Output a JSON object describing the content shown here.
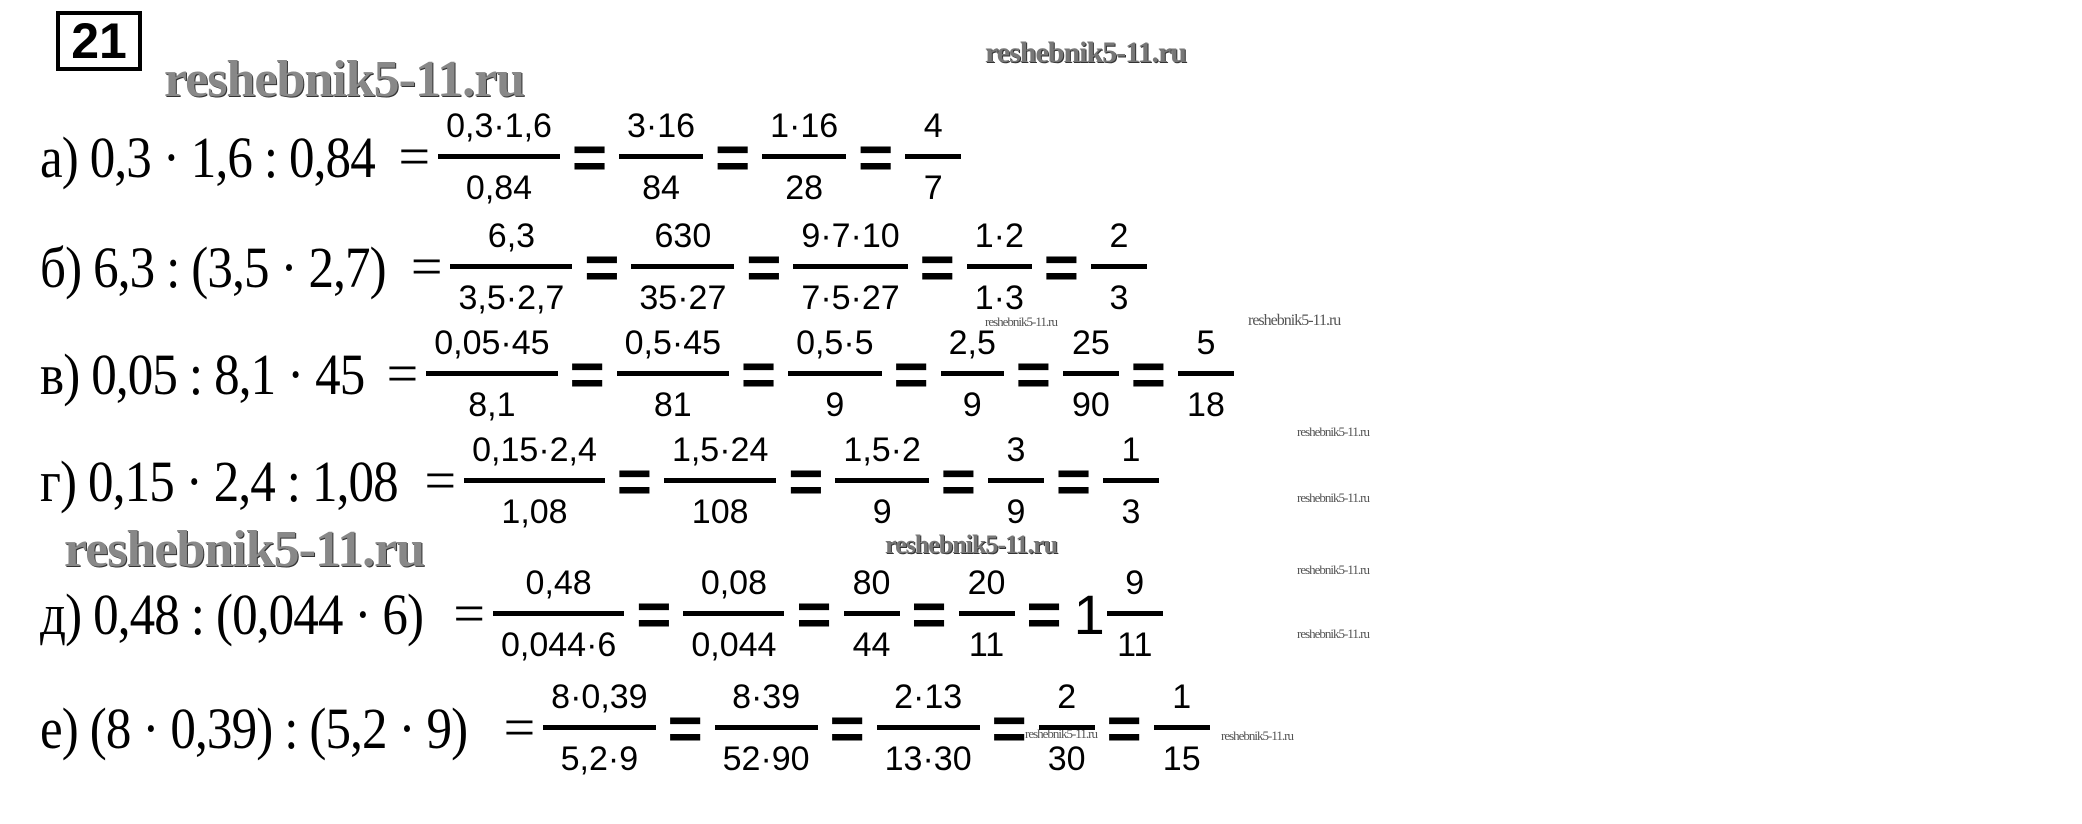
{
  "task_number": "21",
  "watermark": "reshebnik5-11.ru",
  "rows": [
    {
      "label": "а)",
      "expr": "0,3 · 1,6 : 0,84",
      "steps": [
        {
          "num": "0,3·1,6",
          "den": "0,84"
        },
        {
          "num": "3·16",
          "den": "84"
        },
        {
          "num": "1·16",
          "den": "28"
        },
        {
          "num": "4",
          "den": "7"
        }
      ]
    },
    {
      "label": "б)",
      "expr": "6,3 : (3,5 · 2,7)",
      "steps": [
        {
          "num": "6,3",
          "den": "3,5·2,7"
        },
        {
          "num": "630",
          "den": "35·27"
        },
        {
          "num": "9·7·10",
          "den": "7·5·27"
        },
        {
          "num": "1·2",
          "den": "1·3"
        },
        {
          "num": "2",
          "den": "3"
        }
      ]
    },
    {
      "label": "в)",
      "expr": "0,05 : 8,1 · 45",
      "steps": [
        {
          "num": "0,05·45",
          "den": "8,1"
        },
        {
          "num": "0,5·45",
          "den": "81"
        },
        {
          "num": "0,5·5",
          "den": "9"
        },
        {
          "num": "2,5",
          "den": "9"
        },
        {
          "num": "25",
          "den": "90"
        },
        {
          "num": "5",
          "den": "18"
        }
      ]
    },
    {
      "label": "г)",
      "expr": "0,15 · 2,4 : 1,08",
      "steps": [
        {
          "num": "0,15·2,4",
          "den": "1,08"
        },
        {
          "num": "1,5·24",
          "den": "108"
        },
        {
          "num": "1,5·2",
          "den": "9"
        },
        {
          "num": "3",
          "den": "9"
        },
        {
          "num": "1",
          "den": "3"
        }
      ]
    },
    {
      "label": "д)",
      "expr": "0,48 : (0,044 · 6)",
      "steps": [
        {
          "num": "0,48",
          "den": "0,044·6"
        },
        {
          "num": "0,08",
          "den": "0,044"
        },
        {
          "num": "80",
          "den": "44"
        },
        {
          "num": "20",
          "den": "11"
        },
        {
          "whole": "1",
          "num": "9",
          "den": "11"
        }
      ]
    },
    {
      "label": "е)",
      "expr": "(8 · 0,39) : (5,2 · 9)",
      "steps": [
        {
          "num": "8·0,39",
          "den": "5,2·9"
        },
        {
          "num": "8·39",
          "den": "52·90"
        },
        {
          "num": "2·13",
          "den": "13·30"
        },
        {
          "num": "2",
          "den": "30"
        },
        {
          "num": "1",
          "den": "15"
        }
      ]
    }
  ]
}
